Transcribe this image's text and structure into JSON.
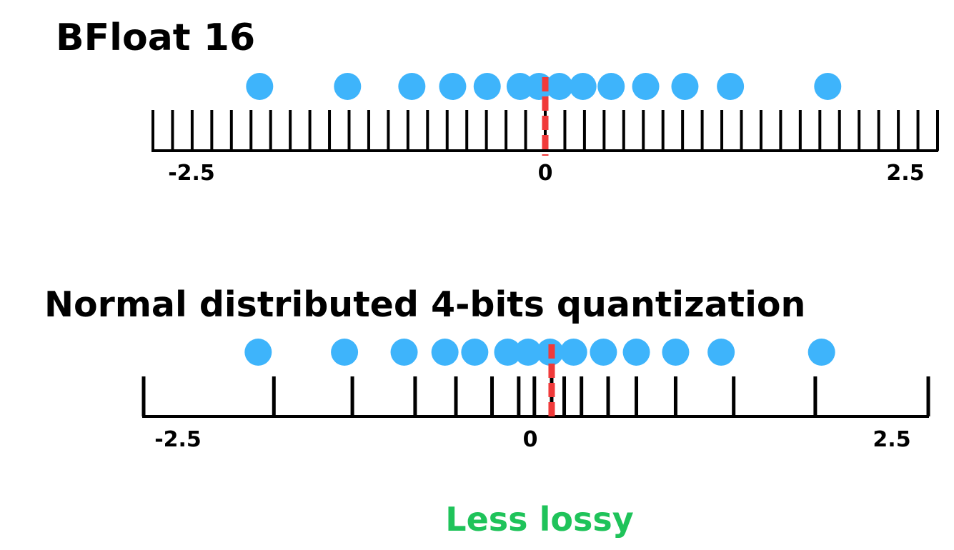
{
  "colors": {
    "dot": "#3eb4fb",
    "zero_line": "#f03a3a",
    "axis": "#000000",
    "caption": "#1fc35a"
  },
  "panels": [
    {
      "id": "bfloat16",
      "title": "BFloat 16",
      "axis_range": [
        -2.5,
        2.5
      ],
      "tick_labels": [
        "-2.5",
        "0",
        "2.5"
      ],
      "tick_values": [
        -2.5,
        -2.375,
        -2.25,
        -2.125,
        -2.0,
        -1.875,
        -1.75,
        -1.625,
        -1.5,
        -1.375,
        -1.25,
        -1.125,
        -1.0,
        -0.875,
        -0.75,
        -0.625,
        -0.5,
        -0.375,
        -0.25,
        -0.125,
        0.0,
        0.125,
        0.25,
        0.375,
        0.5,
        0.625,
        0.75,
        0.875,
        1.0,
        1.125,
        1.25,
        1.375,
        1.5,
        1.625,
        1.75,
        1.875,
        2.0,
        2.125,
        2.25,
        2.375,
        2.5
      ],
      "points": [
        -1.82,
        -1.26,
        -0.85,
        -0.59,
        -0.37,
        -0.16,
        -0.04,
        0.09,
        0.24,
        0.42,
        0.64,
        0.89,
        1.18,
        1.8
      ],
      "zero_line_value": 0.0
    },
    {
      "id": "nf4",
      "title": "Normal distributed 4-bits quantization",
      "axis_range": [
        -2.5,
        2.5
      ],
      "tick_labels": [
        "-2.5",
        "0",
        "2.5"
      ],
      "tick_values": [
        -2.5,
        -1.67,
        -1.17,
        -0.77,
        -0.51,
        -0.28,
        -0.11,
        -0.01,
        0.1,
        0.18,
        0.29,
        0.46,
        0.64,
        0.89,
        1.26,
        1.78,
        2.5
      ],
      "points": [
        -1.77,
        -1.22,
        -0.84,
        -0.58,
        -0.39,
        -0.18,
        -0.05,
        0.09,
        0.24,
        0.43,
        0.64,
        0.89,
        1.18,
        1.82
      ],
      "zero_line_value": 0.1
    }
  ],
  "caption": "Less lossy"
}
